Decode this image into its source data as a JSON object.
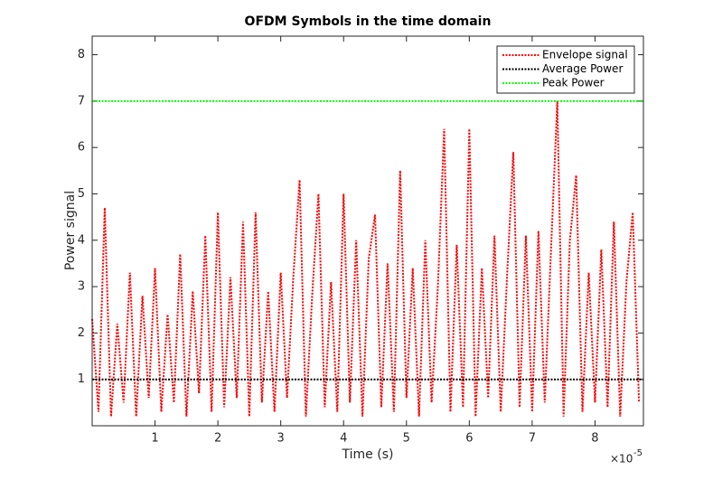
{
  "chart_data": {
    "type": "line",
    "title": "OFDM Symbols in the time domain",
    "x_label": "Time (s)",
    "y_label": "Power signal",
    "x_multiplier": {
      "base": "×10",
      "exponent": "-5"
    },
    "xlim": [
      0,
      8.77
    ],
    "ylim": [
      0,
      8.4
    ],
    "xticks": [
      1,
      2,
      3,
      4,
      5,
      6,
      7,
      8
    ],
    "yticks": [
      1,
      2,
      3,
      4,
      5,
      6,
      7,
      8
    ],
    "legend_position": "upper-right",
    "x": [
      0.0,
      0.1,
      0.2,
      0.3,
      0.4,
      0.5,
      0.6,
      0.7,
      0.8,
      0.9,
      1.0,
      1.1,
      1.2,
      1.3,
      1.4,
      1.5,
      1.6,
      1.7,
      1.8,
      1.9,
      2.0,
      2.1,
      2.2,
      2.3,
      2.4,
      2.5,
      2.6,
      2.7,
      2.8,
      2.9,
      3.0,
      3.1,
      3.2,
      3.3,
      3.4,
      3.5,
      3.6,
      3.7,
      3.8,
      3.9,
      4.0,
      4.1,
      4.2,
      4.3,
      4.4,
      4.5,
      4.6,
      4.7,
      4.8,
      4.9,
      5.0,
      5.1,
      5.2,
      5.3,
      5.4,
      5.5,
      5.6,
      5.7,
      5.8,
      5.9,
      6.0,
      6.1,
      6.2,
      6.3,
      6.4,
      6.5,
      6.6,
      6.7,
      6.8,
      6.9,
      7.0,
      7.1,
      7.2,
      7.3,
      7.4,
      7.5,
      7.6,
      7.7,
      7.8,
      7.9,
      8.0,
      8.1,
      8.2,
      8.3,
      8.4,
      8.5,
      8.6,
      8.7
    ],
    "series": [
      {
        "name": "Envelope signal",
        "color": "#ff0000",
        "values": [
          2.3,
          0.3,
          4.7,
          0.2,
          2.2,
          0.5,
          3.3,
          0.2,
          2.8,
          0.6,
          3.4,
          0.3,
          2.4,
          0.5,
          3.7,
          0.2,
          2.9,
          0.7,
          4.1,
          0.3,
          4.6,
          0.4,
          3.2,
          0.6,
          4.4,
          0.2,
          4.6,
          0.5,
          2.9,
          0.3,
          3.3,
          0.6,
          3.2,
          5.3,
          0.2,
          2.8,
          5.0,
          0.4,
          3.1,
          0.3,
          5.0,
          0.5,
          4.0,
          0.2,
          3.6,
          4.55,
          0.4,
          3.5,
          0.3,
          5.5,
          0.6,
          3.4,
          0.2,
          4.0,
          0.5,
          3.0,
          6.4,
          0.3,
          3.9,
          0.4,
          6.4,
          0.2,
          3.4,
          0.6,
          4.1,
          0.3,
          3.2,
          5.9,
          0.4,
          4.1,
          0.3,
          4.2,
          0.5,
          3.8,
          7.0,
          0.2,
          4.0,
          5.4,
          0.3,
          3.3,
          0.5,
          3.8,
          0.4,
          4.4,
          0.2,
          3.1,
          4.6,
          0.5
        ]
      },
      {
        "name": "Average Power",
        "color": "#000000",
        "value": 1
      },
      {
        "name": "Peak Power",
        "color": "#00ff00",
        "value": 7
      }
    ]
  }
}
